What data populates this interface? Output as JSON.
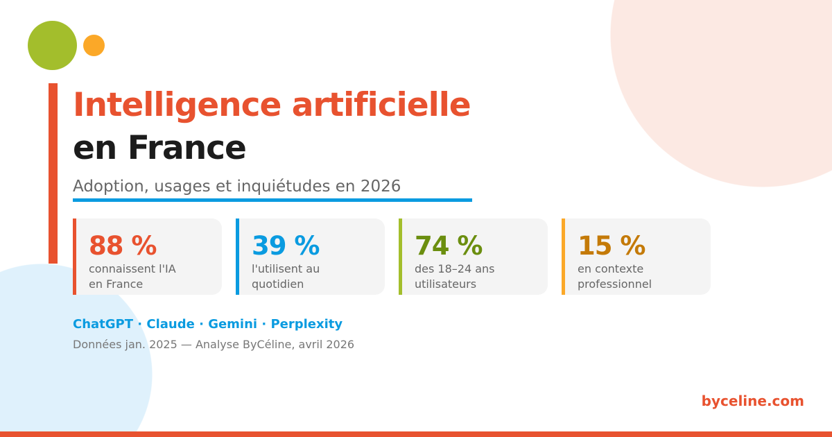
{
  "title_line1": "Intelligence artificielle",
  "title_line2": "en France",
  "subtitle": "Adoption, usages et inquiétudes en 2026",
  "stats": [
    {
      "value": "88 %",
      "line1": "connaissent l'IA",
      "line2": "en France",
      "color": "#e8522f"
    },
    {
      "value": "39 %",
      "line1": "l'utilisent au",
      "line2": "quotidien",
      "color": "#0a9be0"
    },
    {
      "value": "74 %",
      "line1": "des 18–24 ans",
      "line2": "utilisateurs",
      "color": "#6b8e0f",
      "border": "#a3be2c"
    },
    {
      "value": "15 %",
      "line1": "en contexte",
      "line2": "professionnel",
      "color": "#c47a08",
      "border": "#fba828"
    }
  ],
  "tools": "ChatGPT · Claude · Gemini · Perplexity",
  "source": "Données jan. 2025 — Analyse ByCéline, avril 2026",
  "brand": "byceline.com"
}
